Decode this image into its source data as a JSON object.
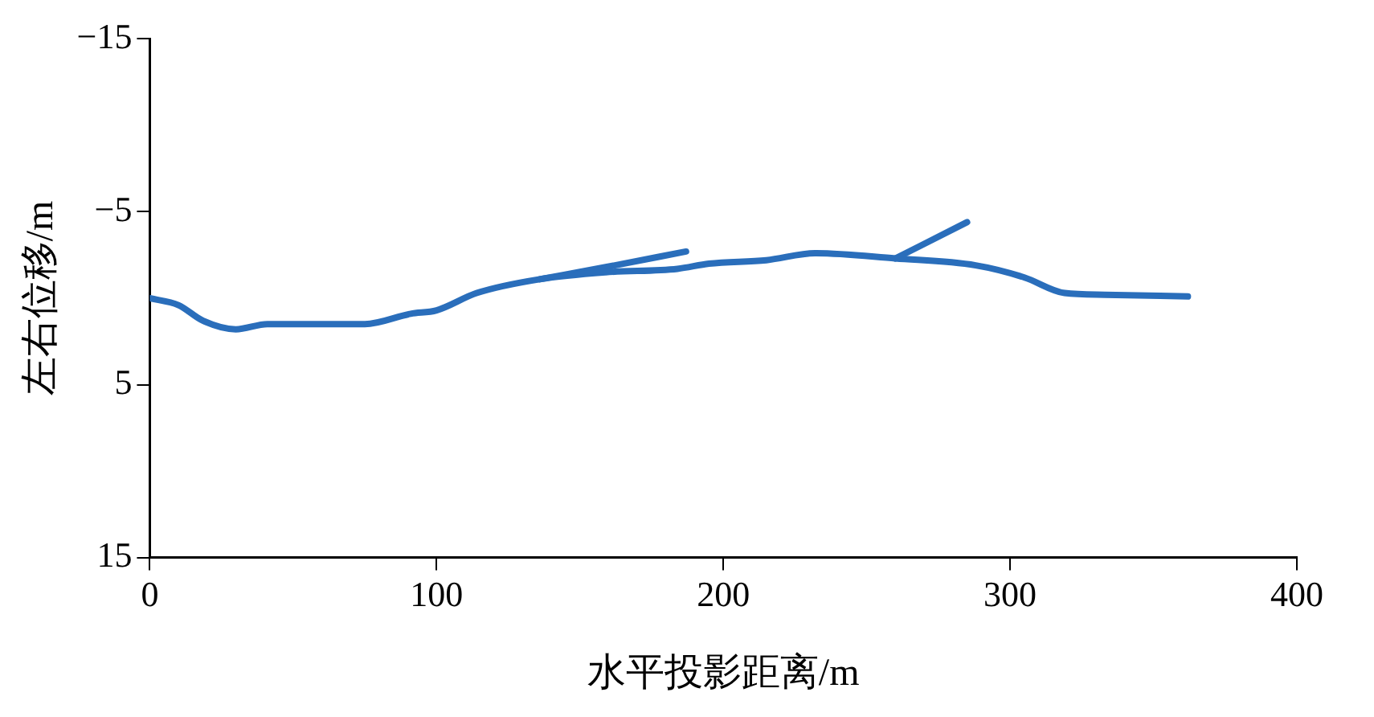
{
  "chart_data": {
    "type": "line",
    "xlabel": "水平投影距离/m",
    "ylabel": "左右位移/m",
    "xlim": [
      0,
      400
    ],
    "xticks": [
      0,
      100,
      200,
      300,
      400
    ],
    "ylim": [
      15,
      -15
    ],
    "yticks": [
      -15,
      -5,
      5,
      15
    ],
    "grid": false,
    "legend": false,
    "marker": "none",
    "series": [
      {
        "color": "#2a6ebb",
        "x": [
          0,
          10,
          18.5,
          30,
          41,
          75,
          91,
          100,
          114,
          136,
          159,
          184,
          195,
          215,
          232,
          260,
          288,
          305,
          319,
          333,
          362
        ],
        "values": [
          0,
          0.4,
          1.3,
          1.8,
          1.5,
          1.5,
          0.9,
          0.7,
          -0.3,
          -1.1,
          -1.5,
          -1.7,
          -2,
          -2.2,
          -2.6,
          -2.3,
          -1.9,
          -1.2,
          -0.3,
          -0.2,
          -0.1
        ]
      },
      {
        "color": "#2a6ebb",
        "x": [
          136,
          159,
          187
        ],
        "values": [
          -1.1,
          -1.8,
          -2.7
        ]
      },
      {
        "color": "#2a6ebb",
        "x": [
          260,
          285
        ],
        "values": [
          -2.3,
          -4.4
        ]
      }
    ]
  }
}
